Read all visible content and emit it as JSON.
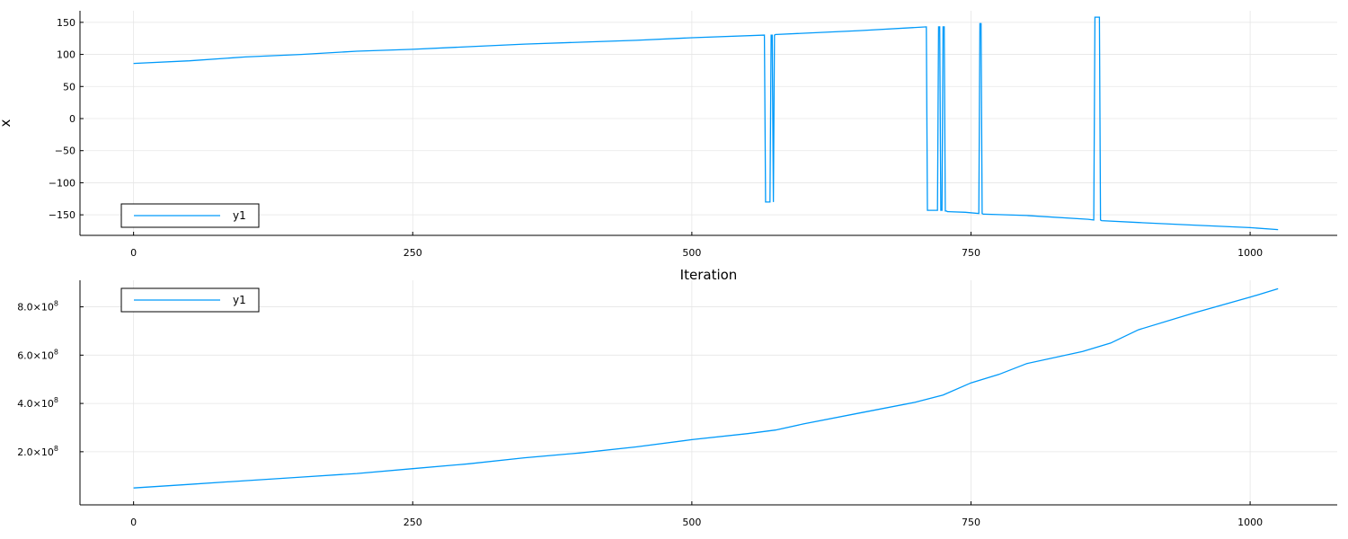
{
  "colors": {
    "series": "#009AFA",
    "grid": "#E6E6E6",
    "axis": "#000000"
  },
  "chart_data": [
    {
      "type": "line",
      "title": "",
      "xlabel": "Iteration",
      "ylabel": "x",
      "xlim": [
        -48,
        1078
      ],
      "ylim": [
        -182,
        168
      ],
      "xticks": [
        0,
        250,
        500,
        750,
        1000
      ],
      "xtick_labels": [
        "0",
        "250",
        "500",
        "750",
        "1000"
      ],
      "yticks": [
        -150,
        -100,
        -50,
        0,
        50,
        100,
        150
      ],
      "ytick_labels": [
        "−150",
        "−100",
        "−50",
        "0",
        "50",
        "100",
        "150"
      ],
      "grid": true,
      "legend": "bottom-left",
      "series": [
        {
          "name": "y1",
          "x": [
            0,
            50,
            100,
            150,
            200,
            250,
            300,
            350,
            400,
            450,
            500,
            565,
            566,
            567,
            570,
            571,
            572,
            573,
            574,
            575,
            576,
            650,
            710,
            711,
            720,
            721,
            722,
            723,
            724,
            725,
            726,
            727,
            728,
            729,
            730,
            745,
            757,
            758,
            759,
            760,
            761,
            762,
            800,
            855,
            860,
            861,
            862,
            865,
            866,
            867,
            900,
            950,
            1000,
            1025
          ],
          "y": [
            86,
            90,
            96,
            100,
            105,
            108,
            112,
            116,
            119,
            122,
            126,
            130,
            -130,
            -130,
            -130,
            130,
            130,
            -130,
            130,
            131,
            131,
            137,
            143,
            -143,
            -143,
            143,
            143,
            -143,
            -143,
            143,
            143,
            -144,
            -144,
            -145,
            -145,
            -146,
            -148,
            148,
            148,
            -148,
            -149,
            -149,
            -151,
            -157,
            -158,
            158,
            158,
            158,
            -158,
            -159,
            -162,
            -166,
            -170,
            -173
          ]
        }
      ]
    },
    {
      "type": "line",
      "title": "",
      "xlabel": "",
      "ylabel": "",
      "xlim": [
        -48,
        1078
      ],
      "ylim": [
        -20000000.0,
        910000000.0
      ],
      "xticks": [
        0,
        250,
        500,
        750,
        1000
      ],
      "xtick_labels": [
        "0",
        "250",
        "500",
        "750",
        "1000"
      ],
      "yticks": [
        200000000.0,
        400000000.0,
        600000000.0,
        800000000.0
      ],
      "ytick_labels": [
        {
          "mantissa": "2.0×10",
          "exponent": "8"
        },
        {
          "mantissa": "4.0×10",
          "exponent": "8"
        },
        {
          "mantissa": "6.0×10",
          "exponent": "8"
        },
        {
          "mantissa": "8.0×10",
          "exponent": "8"
        }
      ],
      "grid": true,
      "legend": "top-left",
      "series": [
        {
          "name": "y1",
          "x": [
            0,
            50,
            100,
            150,
            200,
            250,
            300,
            350,
            400,
            450,
            500,
            550,
            575,
            600,
            650,
            700,
            725,
            750,
            775,
            800,
            850,
            875,
            900,
            950,
            1000,
            1025
          ],
          "y": [
            50000000.0,
            65000000.0,
            80000000.0,
            95000000.0,
            110000000.0,
            130000000.0,
            150000000.0,
            175000000.0,
            195000000.0,
            220000000.0,
            250000000.0,
            275000000.0,
            290000000.0,
            315000000.0,
            360000000.0,
            405000000.0,
            435000000.0,
            485000000.0,
            520000000.0,
            565000000.0,
            615000000.0,
            650000000.0,
            705000000.0,
            775000000.0,
            840000000.0,
            875000000.0
          ]
        }
      ]
    }
  ]
}
